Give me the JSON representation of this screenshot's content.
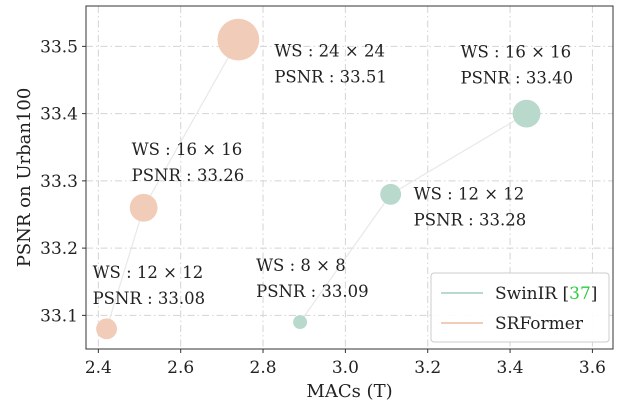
{
  "chart_data": {
    "type": "scatter",
    "xlabel": "MACs (T)",
    "ylabel": "PSNR on Urban100",
    "xlim": [
      2.37,
      3.65
    ],
    "ylim": [
      33.05,
      33.56
    ],
    "x_ticks": [
      "2.4",
      "2.6",
      "2.8",
      "3.0",
      "3.2",
      "3.4",
      "3.6"
    ],
    "y_ticks": [
      "33.1",
      "33.2",
      "33.3",
      "33.4",
      "33.5"
    ],
    "x_tick_values": [
      2.4,
      2.6,
      2.8,
      3.0,
      3.2,
      3.4,
      3.6
    ],
    "y_tick_values": [
      33.1,
      33.2,
      33.3,
      33.4,
      33.5
    ],
    "grid": true,
    "legend_placement": "bottom-right",
    "series": [
      {
        "name": "SwinIR",
        "name_ref": "[37]",
        "color": "#b9d9cc",
        "points": [
          {
            "x": 2.89,
            "y": 33.09,
            "size": 8,
            "ws": "WS : 8 × 8",
            "psnr": "PSNR : 33.09"
          },
          {
            "x": 3.11,
            "y": 33.28,
            "size": 12,
            "ws": "WS : 12 × 12",
            "psnr": "PSNR : 33.28"
          },
          {
            "x": 3.44,
            "y": 33.4,
            "size": 16,
            "ws": "WS : 16 × 16",
            "psnr": "PSNR : 33.40"
          }
        ]
      },
      {
        "name": "SRFormer",
        "color": "#f1cdb9",
        "points": [
          {
            "x": 2.42,
            "y": 33.08,
            "size": 12,
            "ws": "WS : 12 × 12",
            "psnr": "PSNR : 33.08"
          },
          {
            "x": 2.51,
            "y": 33.26,
            "size": 16,
            "ws": "WS : 16 × 16",
            "psnr": "PSNR : 33.26"
          },
          {
            "x": 2.74,
            "y": 33.51,
            "size": 24,
            "ws": "WS : 24 × 24",
            "psnr": "PSNR : 33.51"
          }
        ]
      }
    ]
  }
}
